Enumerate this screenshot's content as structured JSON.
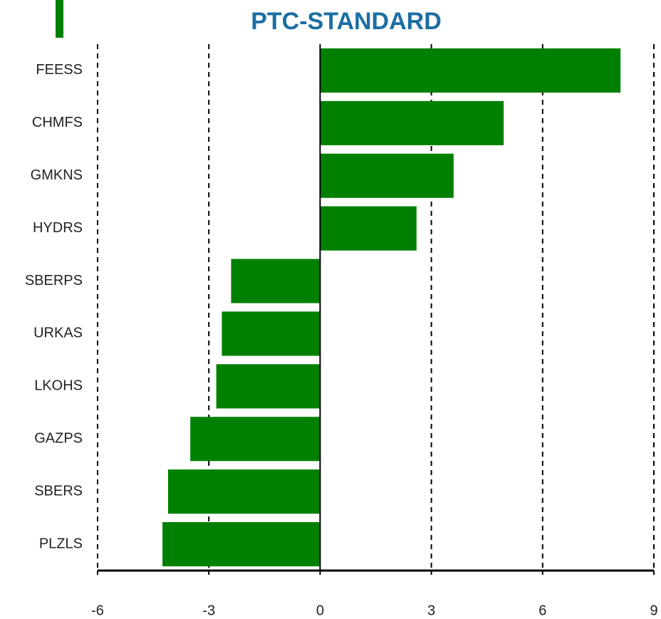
{
  "chart_data": {
    "type": "barh",
    "title": "PTC-STANDARD",
    "categories": [
      "FEESS",
      "CHMFS",
      "GMKNS",
      "HYDRS",
      "SBERPS",
      "URKAS",
      "LKOHS",
      "GAZPS",
      "SBERS",
      "PLZLS"
    ],
    "values": [
      8.1,
      4.95,
      3.6,
      2.6,
      -2.4,
      -2.65,
      -2.8,
      -3.5,
      -4.1,
      -4.25
    ],
    "color": "#008000",
    "xlim": [
      -6,
      9
    ],
    "xticks": [
      -6,
      -3,
      0,
      3,
      6,
      9
    ],
    "grid": true
  }
}
